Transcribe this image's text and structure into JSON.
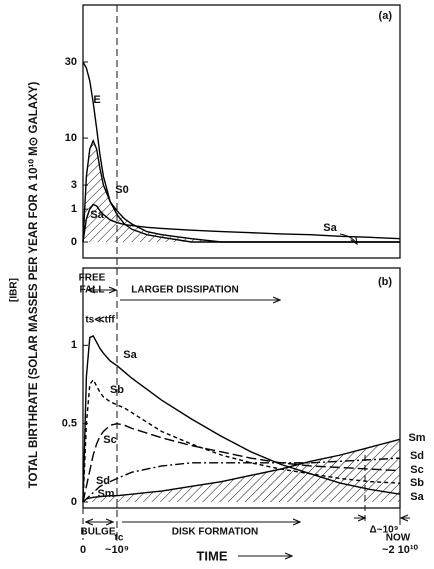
{
  "chart_data": [
    {
      "type": "line",
      "title": "(a)",
      "yscale": "sqrt",
      "x": [
        0,
        100000000.0,
        200000000.0,
        300000000.0,
        400000000.0,
        500000000.0,
        600000000.0,
        800000000.0,
        1000000000.0,
        1500000000.0,
        2000000000.0,
        3000000000.0,
        4000000000.0,
        6000000000.0,
        8000000000.0,
        10000000000.0,
        12000000000.0,
        14000000000.0,
        16000000000.0,
        18000000000.0,
        20000000000.0
      ],
      "xlim": [
        0,
        20000000000.0
      ],
      "ylim": [
        0,
        52
      ],
      "yticks": [
        0,
        1,
        3,
        10,
        30
      ],
      "series": [
        {
          "name": "E",
          "color": "#000",
          "dash": "solid",
          "values": [
            30,
            28,
            24,
            18,
            12,
            7,
            4,
            1.5,
            0.7,
            0.3,
            0.15,
            0.05,
            0.02,
            0,
            0,
            0,
            0,
            0,
            0,
            0,
            0
          ]
        },
        {
          "name": "S0",
          "color": "#000",
          "dash": "solid",
          "hatch": true,
          "values": [
            0,
            4,
            8,
            9.5,
            8,
            5,
            3,
            1.5,
            0.9,
            0.5,
            0.3,
            0.1,
            0.05,
            0.01,
            0,
            0,
            0,
            0,
            0,
            0,
            0
          ]
        },
        {
          "name": "Sa",
          "color": "#000",
          "dash": "solid",
          "values": [
            0,
            0.5,
            1.0,
            1.3,
            1.2,
            0.9,
            0.7,
            0.45,
            0.35,
            0.28,
            0.25,
            0.2,
            0.17,
            0.13,
            0.1,
            0.08,
            0.06,
            0.05,
            0.03,
            0.02,
            0.01
          ]
        }
      ]
    },
    {
      "type": "line",
      "title": "(b)",
      "yscale": "linear",
      "ylabel": "TOTAL BIRTHRATE (SOLAR MASSES PER YEAR FOR A 10¹⁰ M⊙ GALAXY)",
      "x": [
        0,
        100000000.0,
        200000000.0,
        300000000.0,
        400000000.0,
        500000000.0,
        600000000.0,
        800000000.0,
        1000000000.0,
        1500000000.0,
        2000000000.0,
        3000000000.0,
        4000000000.0,
        6000000000.0,
        8000000000.0,
        10000000000.0,
        12000000000.0,
        14000000000.0,
        16000000000.0,
        18000000000.0,
        20000000000.0
      ],
      "xlim": [
        0,
        20000000000.0
      ],
      "ylim": [
        0,
        1.5
      ],
      "xticks": [
        {
          "value": 0,
          "label": "0"
        },
        {
          "value": 1000000000.0,
          "label": "~10⁹"
        },
        {
          "value": 20000000000.0,
          "label": "~2 10¹⁰"
        }
      ],
      "yticks": [
        0,
        0.5,
        1
      ],
      "xlabel": "TIME",
      "annotations": [
        "[IBR]",
        "FREE",
        "FALL",
        "LARGER DISSIPATION",
        "ts≪tff",
        "BULGE",
        "tc",
        "DISK FORMATION",
        "Δ~10⁹",
        "NOW"
      ],
      "series": [
        {
          "name": "Sa",
          "color": "#000",
          "dash": "solid",
          "values": [
            0,
            0.8,
            1.05,
            1.06,
            1.02,
            0.98,
            0.95,
            0.9,
            0.87,
            0.83,
            0.79,
            0.72,
            0.65,
            0.53,
            0.42,
            0.32,
            0.24,
            0.18,
            0.12,
            0.08,
            0.05
          ]
        },
        {
          "name": "Sb",
          "color": "#000",
          "dash": "dash",
          "values": [
            0,
            0.5,
            0.75,
            0.78,
            0.74,
            0.7,
            0.67,
            0.64,
            0.62,
            0.6,
            0.57,
            0.51,
            0.45,
            0.37,
            0.3,
            0.25,
            0.21,
            0.18,
            0.15,
            0.13,
            0.12
          ]
        },
        {
          "name": "Sc",
          "color": "#000",
          "dash": "longdash",
          "values": [
            0,
            0.1,
            0.2,
            0.3,
            0.37,
            0.42,
            0.45,
            0.49,
            0.5,
            0.49,
            0.47,
            0.44,
            0.41,
            0.36,
            0.32,
            0.28,
            0.25,
            0.23,
            0.22,
            0.21,
            0.2
          ]
        },
        {
          "name": "Sd",
          "color": "#000",
          "dash": "dashdot",
          "values": [
            0,
            0.02,
            0.04,
            0.06,
            0.08,
            0.1,
            0.11,
            0.13,
            0.15,
            0.17,
            0.19,
            0.21,
            0.23,
            0.25,
            0.25,
            0.25,
            0.25,
            0.25,
            0.26,
            0.27,
            0.28
          ]
        },
        {
          "name": "Sm",
          "color": "#000",
          "dash": "solid",
          "hatch": true,
          "values": [
            0,
            0.02,
            0.025,
            0.03,
            0.032,
            0.034,
            0.036,
            0.04,
            0.04,
            0.045,
            0.05,
            0.06,
            0.07,
            0.1,
            0.13,
            0.17,
            0.21,
            0.26,
            0.3,
            0.35,
            0.4
          ]
        }
      ]
    }
  ]
}
